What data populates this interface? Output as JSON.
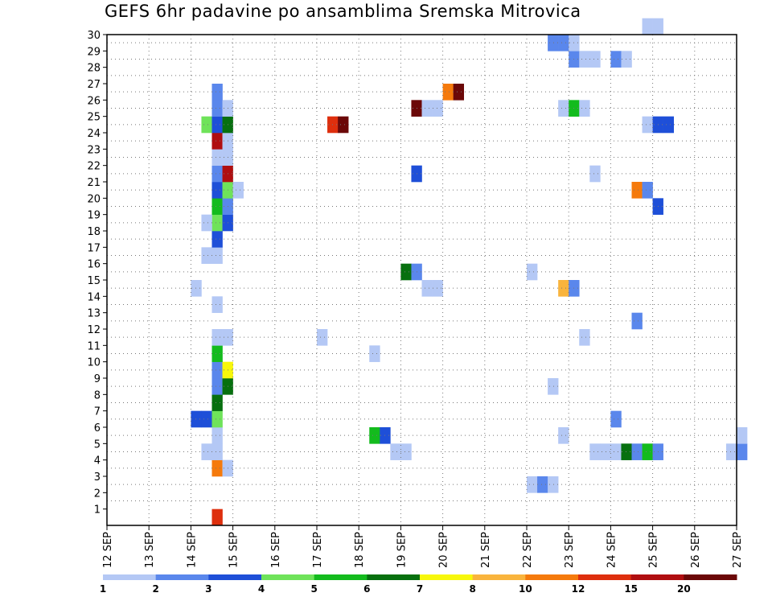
{
  "title": "GEFS 6hr padavine po ansamblima Sremska Mitrovica",
  "chart_data": {
    "type": "heatmap",
    "title": "GEFS 6hr padavine po ansamblima Sremska Mitrovica",
    "xlabel": "",
    "ylabel": "",
    "x_tick_labels": [
      "12 SEP",
      "13 SEP",
      "14 SEP",
      "15 SEP",
      "16 SEP",
      "17 SEP",
      "18 SEP",
      "19 SEP",
      "20 SEP",
      "21 SEP",
      "22 SEP",
      "23 SEP",
      "24 SEP",
      "25 SEP",
      "26 SEP",
      "27 SEP"
    ],
    "y_tick_labels": [
      "1",
      "2",
      "3",
      "4",
      "5",
      "6",
      "7",
      "8",
      "9",
      "10",
      "11",
      "12",
      "13",
      "14",
      "15",
      "16",
      "17",
      "18",
      "19",
      "20",
      "21",
      "22",
      "23",
      "24",
      "25",
      "26",
      "27",
      "28",
      "29",
      "30"
    ],
    "y_range": [
      0,
      30
    ],
    "x_unit": "6-hour steps from 12 SEP",
    "grid": true,
    "legend": {
      "position": "bottom",
      "labels": [
        "1",
        "2",
        "3",
        "4",
        "5",
        "6",
        "7",
        "8",
        "10",
        "12",
        "15",
        "20"
      ],
      "colors": [
        "#b4c8f5",
        "#5a87ec",
        "#1e4fd8",
        "#6fe35a",
        "#13bb1d",
        "#07700f",
        "#f7f70b",
        "#f9b43d",
        "#f57a0c",
        "#de2f0d",
        "#b00e10",
        "#6b0808"
      ]
    },
    "cells": [
      {
        "t": 10,
        "m": 0,
        "c": 9
      },
      {
        "t": 10,
        "m": 3,
        "c": 8
      },
      {
        "t": 11,
        "m": 3,
        "c": 0
      },
      {
        "t": 10,
        "m": 4,
        "c": 0
      },
      {
        "t": 9,
        "m": 4,
        "c": 0
      },
      {
        "t": 10,
        "m": 5,
        "c": 0
      },
      {
        "t": 8,
        "m": 6,
        "c": 2
      },
      {
        "t": 9,
        "m": 6,
        "c": 2
      },
      {
        "t": 10,
        "m": 6,
        "c": 3
      },
      {
        "t": 10,
        "m": 7,
        "c": 5
      },
      {
        "t": 10,
        "m": 8,
        "c": 1
      },
      {
        "t": 11,
        "m": 8,
        "c": 5
      },
      {
        "t": 10,
        "m": 9,
        "c": 1
      },
      {
        "t": 11,
        "m": 9,
        "c": 6
      },
      {
        "t": 10,
        "m": 10,
        "c": 4
      },
      {
        "t": 10,
        "m": 11,
        "c": 0
      },
      {
        "t": 11,
        "m": 11,
        "c": 0
      },
      {
        "t": 10,
        "m": 13,
        "c": 0
      },
      {
        "t": 8,
        "m": 14,
        "c": 0
      },
      {
        "t": 9,
        "m": 16,
        "c": 0
      },
      {
        "t": 10,
        "m": 16,
        "c": 0
      },
      {
        "t": 10,
        "m": 17,
        "c": 2
      },
      {
        "t": 10,
        "m": 18,
        "c": 3
      },
      {
        "t": 11,
        "m": 18,
        "c": 2
      },
      {
        "t": 9,
        "m": 18,
        "c": 0
      },
      {
        "t": 10,
        "m": 19,
        "c": 4
      },
      {
        "t": 11,
        "m": 19,
        "c": 1
      },
      {
        "t": 10,
        "m": 20,
        "c": 2
      },
      {
        "t": 11,
        "m": 20,
        "c": 3
      },
      {
        "t": 12,
        "m": 20,
        "c": 0
      },
      {
        "t": 10,
        "m": 21,
        "c": 1
      },
      {
        "t": 11,
        "m": 21,
        "c": 10
      },
      {
        "t": 10,
        "m": 22,
        "c": 0
      },
      {
        "t": 11,
        "m": 22,
        "c": 0
      },
      {
        "t": 10,
        "m": 23,
        "c": 10
      },
      {
        "t": 11,
        "m": 23,
        "c": 0
      },
      {
        "t": 9,
        "m": 24,
        "c": 3
      },
      {
        "t": 10,
        "m": 24,
        "c": 2
      },
      {
        "t": 11,
        "m": 24,
        "c": 5
      },
      {
        "t": 10,
        "m": 25,
        "c": 1
      },
      {
        "t": 11,
        "m": 25,
        "c": 0
      },
      {
        "t": 10,
        "m": 26,
        "c": 1
      },
      {
        "t": 20,
        "m": 11,
        "c": 0
      },
      {
        "t": 21,
        "m": 24,
        "c": 9
      },
      {
        "t": 22,
        "m": 24,
        "c": 11
      },
      {
        "t": 25,
        "m": 5,
        "c": 4
      },
      {
        "t": 26,
        "m": 5,
        "c": 2
      },
      {
        "t": 25,
        "m": 10,
        "c": 0
      },
      {
        "t": 27,
        "m": 4,
        "c": 0
      },
      {
        "t": 28,
        "m": 4,
        "c": 0
      },
      {
        "t": 28,
        "m": 15,
        "c": 5
      },
      {
        "t": 29,
        "m": 15,
        "c": 1
      },
      {
        "t": 30,
        "m": 14,
        "c": 0
      },
      {
        "t": 31,
        "m": 14,
        "c": 0
      },
      {
        "t": 29,
        "m": 21,
        "c": 2
      },
      {
        "t": 29,
        "m": 25,
        "c": 11
      },
      {
        "t": 30,
        "m": 25,
        "c": 0
      },
      {
        "t": 31,
        "m": 25,
        "c": 0
      },
      {
        "t": 32,
        "m": 26,
        "c": 8
      },
      {
        "t": 33,
        "m": 26,
        "c": 11
      },
      {
        "t": 40,
        "m": 2,
        "c": 0
      },
      {
        "t": 41,
        "m": 2,
        "c": 1
      },
      {
        "t": 42,
        "m": 2,
        "c": 0
      },
      {
        "t": 40,
        "m": 15,
        "c": 0
      },
      {
        "t": 42,
        "m": 8,
        "c": 0
      },
      {
        "t": 43,
        "m": 5,
        "c": 0
      },
      {
        "t": 43,
        "m": 14,
        "c": 7
      },
      {
        "t": 44,
        "m": 14,
        "c": 1
      },
      {
        "t": 43,
        "m": 25,
        "c": 0
      },
      {
        "t": 44,
        "m": 25,
        "c": 4
      },
      {
        "t": 45,
        "m": 25,
        "c": 0
      },
      {
        "t": 45,
        "m": 11,
        "c": 0
      },
      {
        "t": 46,
        "m": 4,
        "c": 0
      },
      {
        "t": 47,
        "m": 4,
        "c": 0
      },
      {
        "t": 48,
        "m": 4,
        "c": 0
      },
      {
        "t": 48,
        "m": 6,
        "c": 1
      },
      {
        "t": 46,
        "m": 21,
        "c": 0
      },
      {
        "t": 44,
        "m": 28,
        "c": 1
      },
      {
        "t": 45,
        "m": 28,
        "c": 0
      },
      {
        "t": 46,
        "m": 28,
        "c": 0
      },
      {
        "t": 42,
        "m": 29,
        "c": 1
      },
      {
        "t": 43,
        "m": 29,
        "c": 1
      },
      {
        "t": 44,
        "m": 29,
        "c": 0
      },
      {
        "t": 48,
        "m": 28,
        "c": 1
      },
      {
        "t": 49,
        "m": 28,
        "c": 0
      },
      {
        "t": 49,
        "m": 4,
        "c": 5
      },
      {
        "t": 50,
        "m": 4,
        "c": 1
      },
      {
        "t": 51,
        "m": 4,
        "c": 4
      },
      {
        "t": 52,
        "m": 4,
        "c": 1
      },
      {
        "t": 50,
        "m": 12,
        "c": 1
      },
      {
        "t": 50,
        "m": 20,
        "c": 8
      },
      {
        "t": 51,
        "m": 20,
        "c": 1
      },
      {
        "t": 52,
        "m": 19,
        "c": 2
      },
      {
        "t": 51,
        "m": 24,
        "c": 0
      },
      {
        "t": 52,
        "m": 24,
        "c": 2
      },
      {
        "t": 53,
        "m": 24,
        "c": 2
      },
      {
        "t": 51,
        "m": 30,
        "c": 0
      },
      {
        "t": 52,
        "m": 30,
        "c": 0
      },
      {
        "t": 59,
        "m": 4,
        "c": 0
      },
      {
        "t": 60,
        "m": 4,
        "c": 1
      },
      {
        "t": 60,
        "m": 5,
        "c": 0
      }
    ]
  }
}
